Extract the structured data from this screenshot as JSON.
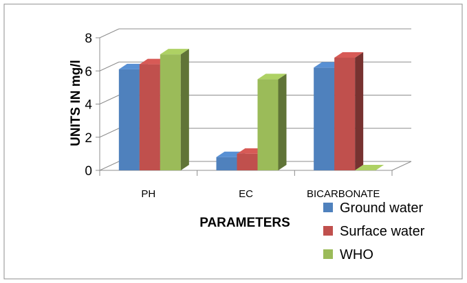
{
  "chart_data": {
    "type": "bar",
    "variant": "3d-clustered-column",
    "categories": [
      "PH",
      "EC",
      "BICARBONATE"
    ],
    "series": [
      {
        "name": "Ground water",
        "values": [
          6.1,
          0.8,
          6.2
        ],
        "color": "#4F81BD"
      },
      {
        "name": "Surface water",
        "values": [
          6.4,
          1.0,
          6.8
        ],
        "color": "#C0504D"
      },
      {
        "name": "WHO",
        "values": [
          7.0,
          5.5,
          0.0
        ],
        "color": "#9BBB59"
      }
    ],
    "xlabel": "PARAMETERS",
    "ylabel": "UNITS IN mg/l",
    "yticks": [
      0,
      2,
      4,
      6,
      8
    ],
    "ylim": [
      0,
      8
    ],
    "grid": true,
    "legend_position": "bottom-right"
  }
}
